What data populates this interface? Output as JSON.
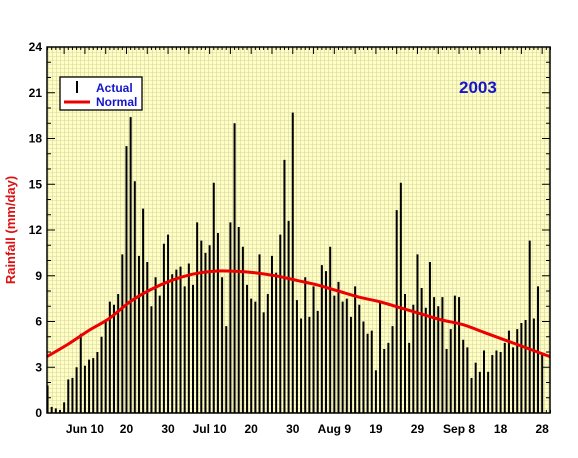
{
  "chart_data": {
    "type": "bar",
    "title": "",
    "annotation": "2003",
    "xlabel": "",
    "ylabel": "Rainfall (mm/day)",
    "ylim": [
      0,
      24
    ],
    "yticks": [
      "0",
      "3",
      "6",
      "9",
      "12",
      "15",
      "18",
      "21",
      "24"
    ],
    "x_start": "Jun 1",
    "x_day_range": [
      0,
      121
    ],
    "xticks": [
      {
        "day": 9,
        "label": "Jun 10"
      },
      {
        "day": 19,
        "label": "20"
      },
      {
        "day": 29,
        "label": "30"
      },
      {
        "day": 39,
        "label": "Jul 10"
      },
      {
        "day": 49,
        "label": "20"
      },
      {
        "day": 59,
        "label": "30"
      },
      {
        "day": 69,
        "label": "Aug 9"
      },
      {
        "day": 79,
        "label": "19"
      },
      {
        "day": 89,
        "label": "29"
      },
      {
        "day": 99,
        "label": "Sep 8"
      },
      {
        "day": 109,
        "label": "18"
      },
      {
        "day": 119,
        "label": "28"
      }
    ],
    "grid": true,
    "legend_position": "top-left",
    "series": [
      {
        "name": "Actual",
        "type": "bar",
        "color": "#000000",
        "values": [
          1.8,
          0.4,
          0.3,
          0.2,
          0.7,
          2.2,
          2.3,
          3.0,
          5.2,
          3.1,
          3.5,
          3.6,
          4.0,
          5.0,
          6.1,
          7.3,
          7.1,
          7.8,
          10.4,
          17.5,
          19.4,
          15.2,
          10.3,
          13.4,
          9.9,
          7.0,
          8.9,
          7.7,
          11.1,
          11.7,
          9.1,
          9.4,
          9.6,
          8.3,
          9.8,
          8.4,
          12.5,
          11.3,
          10.5,
          11.0,
          15.1,
          11.8,
          8.9,
          5.7,
          12.5,
          19.0,
          12.2,
          10.9,
          8.4,
          7.5,
          7.3,
          10.4,
          6.6,
          7.8,
          10.3,
          9.2,
          11.7,
          16.6,
          12.6,
          19.7,
          7.4,
          6.2,
          8.9,
          6.3,
          8.3,
          6.7,
          9.7,
          9.3,
          10.9,
          7.7,
          8.6,
          7.3,
          7.5,
          6.3,
          8.3,
          7.1,
          6.0,
          5.2,
          5.4,
          2.8,
          7.3,
          4.2,
          4.6,
          5.7,
          13.3,
          15.1,
          7.8,
          4.6,
          7.1,
          10.4,
          8.2,
          6.9,
          9.9,
          7.6,
          7.0,
          7.6,
          4.2,
          5.5,
          7.7,
          7.6,
          4.8,
          4.3,
          2.3,
          3.3,
          2.7,
          4.1,
          2.7,
          3.8,
          4.1,
          4.0,
          4.6,
          5.4,
          4.3,
          5.5,
          5.9,
          6.1,
          11.3,
          6.2,
          8.3,
          3.9
        ]
      },
      {
        "name": "Normal",
        "type": "line",
        "color": "#ee0000",
        "x": [
          0,
          5,
          10,
          15,
          20,
          25,
          30,
          35,
          40,
          45,
          50,
          55,
          60,
          65,
          70,
          75,
          80,
          85,
          90,
          95,
          100,
          105,
          110,
          115,
          121
        ],
        "values": [
          3.7,
          4.5,
          5.4,
          6.2,
          7.3,
          8.1,
          8.7,
          9.1,
          9.3,
          9.3,
          9.2,
          9.0,
          8.7,
          8.4,
          8.0,
          7.6,
          7.3,
          6.9,
          6.5,
          6.1,
          5.8,
          5.3,
          4.8,
          4.3,
          3.7
        ]
      }
    ]
  }
}
